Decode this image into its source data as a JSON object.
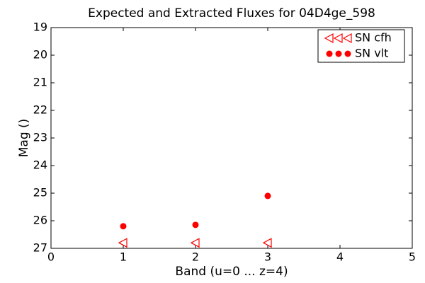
{
  "chart_data": {
    "type": "scatter",
    "title": "Expected and Extracted Fluxes for 04D4ge_598",
    "title_color": "#ff0000",
    "x_label": "Band (u=0 ... z=4)",
    "y_label": "Mag ()",
    "xlim": [
      0,
      5
    ],
    "xticks": [
      0,
      1,
      2,
      3,
      4,
      5
    ],
    "ylim": [
      27,
      19
    ],
    "yticks": [
      19,
      20,
      21,
      22,
      23,
      24,
      25,
      26,
      27
    ],
    "legend": "upper right",
    "series": [
      {
        "name": "SN cfh",
        "color": "#ff0000",
        "marker": "triangle-left",
        "x": [
          1,
          2,
          3
        ],
        "values": [
          26.8,
          26.8,
          26.8
        ]
      },
      {
        "name": "SN vlt",
        "color": "#ff0000",
        "marker": "circle",
        "x": [
          1,
          2,
          3
        ],
        "values": [
          26.2,
          26.15,
          25.1
        ]
      }
    ]
  }
}
